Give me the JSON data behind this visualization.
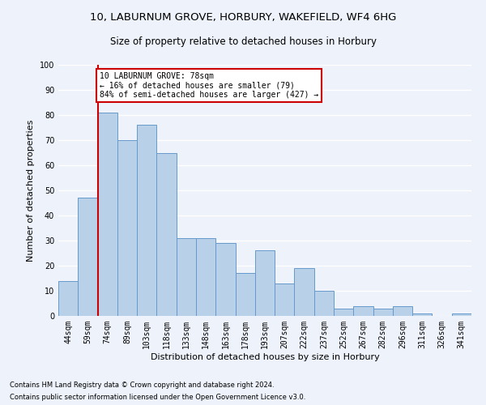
{
  "title1": "10, LABURNUM GROVE, HORBURY, WAKEFIELD, WF4 6HG",
  "title2": "Size of property relative to detached houses in Horbury",
  "xlabel": "Distribution of detached houses by size in Horbury",
  "ylabel": "Number of detached properties",
  "footnote1": "Contains HM Land Registry data © Crown copyright and database right 2024.",
  "footnote2": "Contains public sector information licensed under the Open Government Licence v3.0.",
  "categories": [
    "44sqm",
    "59sqm",
    "74sqm",
    "89sqm",
    "103sqm",
    "118sqm",
    "133sqm",
    "148sqm",
    "163sqm",
    "178sqm",
    "193sqm",
    "207sqm",
    "222sqm",
    "237sqm",
    "252sqm",
    "267sqm",
    "282sqm",
    "296sqm",
    "311sqm",
    "326sqm",
    "341sqm"
  ],
  "values": [
    14,
    47,
    81,
    70,
    76,
    65,
    31,
    31,
    29,
    17,
    26,
    13,
    19,
    10,
    3,
    4,
    3,
    4,
    1,
    0,
    1
  ],
  "bar_color": "#b8d0e8",
  "bar_edge_color": "#6699cc",
  "vline_color": "#cc0000",
  "annotation_text": "10 LABURNUM GROVE: 78sqm\n← 16% of detached houses are smaller (79)\n84% of semi-detached houses are larger (427) →",
  "annotation_box_color": "#ffffff",
  "annotation_box_edge": "#cc0000",
  "ylim": [
    0,
    100
  ],
  "background_color": "#eef2fa",
  "grid_color": "#ffffff",
  "title1_fontsize": 9.5,
  "title2_fontsize": 8.5,
  "xlabel_fontsize": 8,
  "ylabel_fontsize": 8,
  "tick_fontsize": 7,
  "annotation_fontsize": 7,
  "footnote_fontsize": 6
}
